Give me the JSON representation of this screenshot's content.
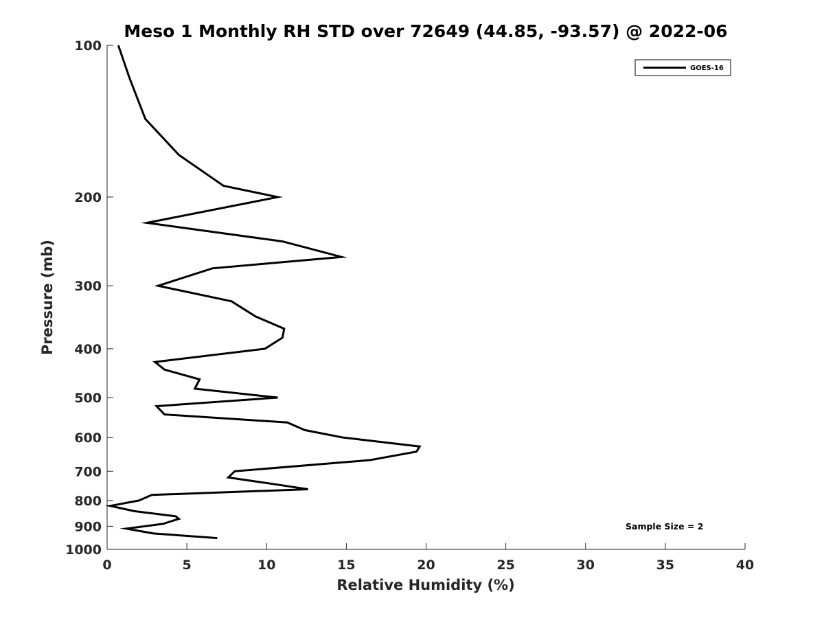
{
  "chart_data": {
    "type": "line",
    "title": "Meso 1 Monthly RH STD over 72649 (44.85, -93.57) @ 2022-06",
    "xlabel": "Relative Humidity (%)",
    "ylabel": "Pressure (mb)",
    "xlim": [
      0,
      40
    ],
    "ylim": [
      100,
      1000
    ],
    "y_scale": "log",
    "y_direction": "reversed",
    "x_ticks": [
      "0",
      "5",
      "10",
      "15",
      "20",
      "25",
      "30",
      "35",
      "40"
    ],
    "y_ticks": [
      "100",
      "200",
      "300",
      "400",
      "500",
      "600",
      "700",
      "800",
      "900",
      "1000"
    ],
    "grid": false,
    "legend_position": "top-right",
    "series": [
      {
        "name": "GOES-16",
        "color": "#000000",
        "x": [
          0.7,
          1.4,
          2.4,
          4.5,
          7.3,
          10.7,
          2.5,
          11.0,
          14.7,
          6.6,
          3.2,
          7.8,
          9.3,
          11.1,
          11.0,
          9.9,
          3.0,
          3.6,
          5.8,
          5.5,
          10.7,
          3.1,
          3.6,
          11.3,
          12.4,
          14.8,
          19.6,
          19.4,
          16.5,
          8.0,
          7.6,
          10.8,
          12.6,
          2.8,
          2.0,
          0.2,
          1.7,
          4.3,
          4.5,
          3.5,
          1.2,
          2.9,
          6.9
        ],
        "y": [
          100,
          116,
          140,
          165,
          190,
          200,
          225,
          245,
          263,
          277,
          300,
          322,
          345,
          365,
          380,
          400,
          425,
          440,
          460,
          480,
          500,
          520,
          540,
          560,
          580,
          600,
          625,
          640,
          665,
          700,
          720,
          745,
          760,
          780,
          800,
          820,
          840,
          860,
          870,
          890,
          910,
          930,
          950
        ]
      }
    ],
    "annotation": "Sample Size = 2"
  }
}
